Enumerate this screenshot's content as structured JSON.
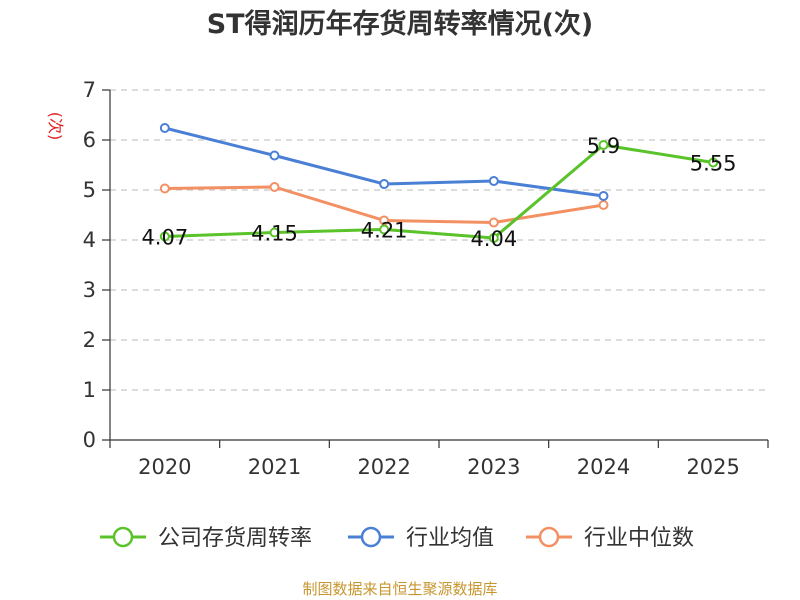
{
  "chart_data": {
    "type": "line",
    "title": "ST得润历年存货周转率情况(次)",
    "xlabel": "",
    "ylabel": "(次)",
    "categories": [
      "2020",
      "2021",
      "2022",
      "2023",
      "2024",
      "2025"
    ],
    "ylim": [
      0,
      7
    ],
    "yticks": [
      "0",
      "1",
      "2",
      "3",
      "4",
      "5",
      "6",
      "7"
    ],
    "grid": true,
    "legend_position": "bottom",
    "series": [
      {
        "name": "公司存货周转率",
        "color": "#5ac32a",
        "values": [
          4.07,
          4.15,
          4.21,
          4.04,
          5.9,
          5.55
        ],
        "labels": [
          "4.07",
          "4.15",
          "4.21",
          "4.04",
          "5.9",
          "5.55"
        ]
      },
      {
        "name": "行业均值",
        "color": "#4a7fd6",
        "values": [
          6.24,
          5.69,
          5.12,
          5.18,
          4.88,
          null
        ]
      },
      {
        "name": "行业中位数",
        "color": "#f39062",
        "values": [
          5.03,
          5.06,
          4.39,
          4.35,
          4.7,
          null
        ]
      }
    ],
    "source": "制图数据来自恒生聚源数据库"
  }
}
